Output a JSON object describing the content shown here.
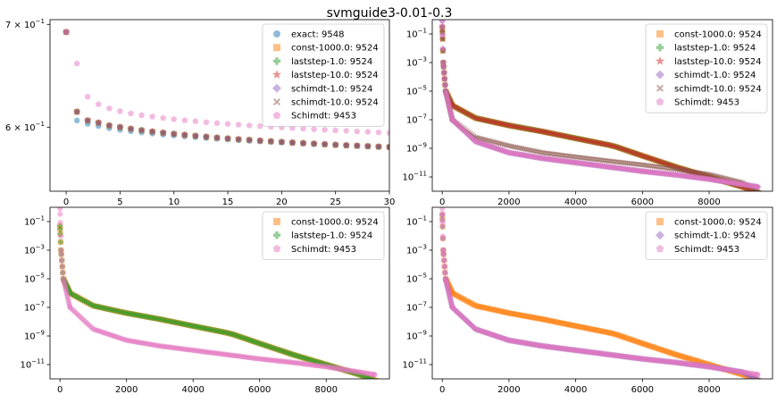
{
  "title": "svmguide3-0.01-0.3",
  "colors": {
    "exact": "#1f77b4",
    "const": "#ff7f0e",
    "laststep1": "#2ca02c",
    "laststep10": "#d62728",
    "schimdt1": "#9467bd",
    "schimdt10": "#8c564b",
    "Schimdt": "#e377c2"
  },
  "chart_data": [
    {
      "type": "scatter",
      "panel": "top-left",
      "yscale": "log",
      "xlim": [
        -1.5,
        30
      ],
      "ylim": [
        0.545,
        0.705
      ],
      "xticks": [
        "0",
        "5",
        "10",
        "15",
        "20",
        "25",
        "30"
      ],
      "yticks": [
        {
          "label": "6 × 10^-1",
          "value": 0.6
        },
        {
          "label": "7 × 10^-1",
          "value": 0.7
        }
      ],
      "legend": "upper right",
      "series": [
        {
          "name": "exact: 9548",
          "marker": "o",
          "color": "exact",
          "x": [
            0,
            1,
            2,
            3,
            4,
            5,
            6,
            7,
            8,
            9,
            10,
            11,
            12,
            13,
            14,
            15,
            16,
            17,
            18,
            19,
            20,
            21,
            22,
            23,
            24,
            25,
            26,
            27,
            28,
            29,
            30
          ],
          "y": [
            0.692,
            0.606,
            0.603,
            0.601,
            0.599,
            0.5975,
            0.5963,
            0.5952,
            0.5942,
            0.5933,
            0.5925,
            0.5917,
            0.591,
            0.5903,
            0.5896,
            0.589,
            0.5884,
            0.5878,
            0.5873,
            0.5868,
            0.5863,
            0.5858,
            0.5853,
            0.5849,
            0.5845,
            0.5841,
            0.5837,
            0.5833,
            0.5829,
            0.5825,
            0.5822
          ]
        },
        {
          "name": "const-1000.0: 9524",
          "marker": "s",
          "color": "const",
          "same_as": "schimdt-10.0: 9524"
        },
        {
          "name": "laststep-1.0: 9524",
          "marker": "P",
          "color": "laststep1",
          "same_as": "schimdt-10.0: 9524"
        },
        {
          "name": "laststep-10.0: 9524",
          "marker": "*",
          "color": "laststep10",
          "same_as": "schimdt-10.0: 9524"
        },
        {
          "name": "schimdt-1.0: 9524",
          "marker": "D",
          "color": "schimdt1",
          "same_as": "schimdt-10.0: 9524"
        },
        {
          "name": "schimdt-10.0: 9524",
          "marker": "X",
          "color": "schimdt10",
          "x": [
            0,
            1,
            2,
            3,
            4,
            5,
            6,
            7,
            8,
            9,
            10,
            11,
            12,
            13,
            14,
            15,
            16,
            17,
            18,
            19,
            20,
            21,
            22,
            23,
            24,
            25,
            26,
            27,
            28,
            29,
            30
          ],
          "y": [
            0.692,
            0.614,
            0.606,
            0.604,
            0.6015,
            0.6,
            0.5985,
            0.5972,
            0.596,
            0.595,
            0.594,
            0.5931,
            0.5922,
            0.5914,
            0.5906,
            0.5899,
            0.5892,
            0.5886,
            0.588,
            0.5874,
            0.5868,
            0.5863,
            0.5858,
            0.5853,
            0.5848,
            0.5843,
            0.5839,
            0.5835,
            0.5831,
            0.5827,
            0.5824
          ]
        },
        {
          "name": "Schimdt: 9453",
          "marker": "p",
          "color": "Schimdt",
          "x": [
            0,
            1,
            2,
            3,
            4,
            5,
            6,
            7,
            8,
            9,
            10,
            11,
            12,
            13,
            14,
            15,
            16,
            17,
            18,
            19,
            20,
            21,
            22,
            23,
            24,
            25,
            26,
            27,
            28,
            29,
            30
          ],
          "y": [
            0.692,
            0.66,
            0.628,
            0.621,
            0.617,
            0.6145,
            0.6125,
            0.6108,
            0.6095,
            0.6083,
            0.6072,
            0.6062,
            0.6053,
            0.6044,
            0.6036,
            0.6029,
            0.6022,
            0.6015,
            0.6009,
            0.6003,
            0.5997,
            0.5992,
            0.5986,
            0.5981,
            0.5976,
            0.5971,
            0.5967,
            0.5962,
            0.5958,
            0.5953,
            0.5949
          ]
        }
      ]
    },
    {
      "type": "scatter",
      "panel": "top-right",
      "yscale": "log",
      "xlim": [
        -300,
        9900
      ],
      "ylim": [
        1e-12,
        1
      ],
      "xticks": [
        "0",
        "2000",
        "4000",
        "6000",
        "8000"
      ],
      "yticks": [
        {
          "label": "10^-11",
          "value": 1e-11
        },
        {
          "label": "10^-9",
          "value": 1e-09
        },
        {
          "label": "10^-7",
          "value": 1e-07
        },
        {
          "label": "10^-5",
          "value": 1e-05
        },
        {
          "label": "10^-3",
          "value": 0.001
        },
        {
          "label": "10^-1",
          "value": 0.1
        }
      ],
      "legend": "upper right",
      "series": [
        {
          "name": "const-1000.0: 9524",
          "marker": "s",
          "color": "const",
          "same_as": "laststep-10.0: 9524"
        },
        {
          "name": "laststep-1.0: 9524",
          "marker": "P",
          "color": "laststep1",
          "same_as": "laststep-10.0: 9524"
        },
        {
          "name": "laststep-10.0: 9524",
          "marker": "*",
          "color": "laststep10",
          "x": [
            0,
            30,
            100,
            300,
            1000,
            2000,
            3000,
            4000,
            5000,
            5200,
            6000,
            7000,
            8000,
            9000,
            9524
          ],
          "y": [
            0.3,
            0.001,
            1e-05,
            1e-06,
            1.3e-07,
            4e-08,
            1.5e-08,
            5e-09,
            1.7e-09,
            1.3e-09,
            3e-10,
            5e-11,
            1e-11,
            2e-12,
            7e-13
          ]
        },
        {
          "name": "schimdt-1.0: 9524",
          "marker": "D",
          "color": "schimdt1",
          "same_as": "Schimdt: 9453"
        },
        {
          "name": "schimdt-10.0: 9524",
          "marker": "X",
          "color": "schimdt10",
          "x": [
            0,
            30,
            100,
            300,
            1000,
            2000,
            3000,
            4000,
            5000,
            6000,
            7000,
            8000,
            9000,
            9524
          ],
          "y": [
            0.3,
            0.001,
            1e-05,
            1e-07,
            6e-09,
            1.5e-09,
            5e-10,
            2.5e-10,
            1.3e-10,
            7e-11,
            3.5e-11,
            1.5e-11,
            4e-12,
            7e-13
          ]
        },
        {
          "name": "Schimdt: 9453",
          "marker": "p",
          "color": "Schimdt",
          "x": [
            0,
            30,
            100,
            300,
            1000,
            2000,
            3000,
            4000,
            5000,
            6000,
            7000,
            8000,
            9000,
            9453
          ],
          "y": [
            0.8,
            0.001,
            1e-05,
            1e-07,
            3e-09,
            5e-10,
            2e-10,
            1e-10,
            5e-11,
            2.5e-11,
            1.4e-11,
            7e-12,
            3e-12,
            2e-12
          ]
        }
      ]
    },
    {
      "type": "scatter",
      "panel": "bottom-left",
      "yscale": "log",
      "xlim": [
        -300,
        9900
      ],
      "ylim": [
        1e-12,
        1
      ],
      "xticks": [
        "0",
        "2000",
        "4000",
        "6000",
        "8000"
      ],
      "yticks": [
        {
          "label": "10^-11",
          "value": 1e-11
        },
        {
          "label": "10^-9",
          "value": 1e-09
        },
        {
          "label": "10^-7",
          "value": 1e-07
        },
        {
          "label": "10^-5",
          "value": 1e-05
        },
        {
          "label": "10^-3",
          "value": 0.001
        },
        {
          "label": "10^-1",
          "value": 0.1
        }
      ],
      "legend": "upper right",
      "series": [
        {
          "name": "const-1000.0: 9524",
          "marker": "s",
          "color": "const",
          "same_as": "laststep-1.0: 9524"
        },
        {
          "name": "laststep-1.0: 9524",
          "marker": "P",
          "color": "laststep1",
          "x": [
            0,
            30,
            100,
            300,
            1000,
            2000,
            3000,
            4000,
            5000,
            5200,
            6000,
            7000,
            8000,
            9000,
            9524
          ],
          "y": [
            0.05,
            0.001,
            1e-05,
            1e-06,
            1.3e-07,
            4e-08,
            1.5e-08,
            5e-09,
            1.7e-09,
            1.3e-09,
            3e-10,
            5e-11,
            1e-11,
            2e-12,
            7e-13
          ]
        },
        {
          "name": "Schimdt: 9453",
          "marker": "p",
          "color": "Schimdt",
          "x": [
            0,
            30,
            100,
            300,
            1000,
            2000,
            3000,
            4000,
            5000,
            6000,
            7000,
            8000,
            9000,
            9453
          ],
          "y": [
            0.8,
            0.001,
            1e-05,
            1e-07,
            3e-09,
            5e-10,
            2e-10,
            1e-10,
            5e-11,
            2.5e-11,
            1.4e-11,
            7e-12,
            3e-12,
            2e-12
          ]
        }
      ]
    },
    {
      "type": "scatter",
      "panel": "bottom-right",
      "yscale": "log",
      "xlim": [
        -300,
        9900
      ],
      "ylim": [
        1e-12,
        1
      ],
      "xticks": [
        "0",
        "2000",
        "4000",
        "6000",
        "8000"
      ],
      "yticks": [
        {
          "label": "10^-11",
          "value": 1e-11
        },
        {
          "label": "10^-9",
          "value": 1e-09
        },
        {
          "label": "10^-7",
          "value": 1e-07
        },
        {
          "label": "10^-5",
          "value": 1e-05
        },
        {
          "label": "10^-3",
          "value": 0.001
        },
        {
          "label": "10^-1",
          "value": 0.1
        }
      ],
      "legend": "upper right",
      "series": [
        {
          "name": "const-1000.0: 9524",
          "marker": "s",
          "color": "const",
          "x": [
            0,
            30,
            100,
            300,
            1000,
            2000,
            3000,
            4000,
            5000,
            5200,
            6000,
            7000,
            8000,
            9000,
            9524
          ],
          "y": [
            0.3,
            0.001,
            1e-05,
            1e-06,
            1.3e-07,
            4e-08,
            1.5e-08,
            5e-09,
            1.7e-09,
            1.3e-09,
            3e-10,
            5e-11,
            1e-11,
            2e-12,
            7e-13
          ]
        },
        {
          "name": "schimdt-1.0: 9524",
          "marker": "D",
          "color": "schimdt1",
          "x": [
            0,
            30,
            100,
            300,
            1000,
            2000,
            3000,
            4000,
            5000,
            6000,
            7000,
            8000,
            9000,
            9524
          ],
          "y": [
            0.3,
            0.001,
            1e-05,
            1e-07,
            3e-09,
            5e-10,
            2e-10,
            1e-10,
            5e-11,
            2.5e-11,
            1.4e-11,
            7e-12,
            3e-12,
            7e-13
          ]
        },
        {
          "name": "Schimdt: 9453",
          "marker": "p",
          "color": "Schimdt",
          "x": [
            0,
            30,
            100,
            300,
            1000,
            2000,
            3000,
            4000,
            5000,
            6000,
            7000,
            8000,
            9000,
            9453
          ],
          "y": [
            0.8,
            0.001,
            1e-05,
            1e-07,
            3e-09,
            5e-10,
            2e-10,
            1e-10,
            5e-11,
            2.5e-11,
            1.4e-11,
            7e-12,
            3e-12,
            2e-12
          ]
        }
      ]
    }
  ]
}
